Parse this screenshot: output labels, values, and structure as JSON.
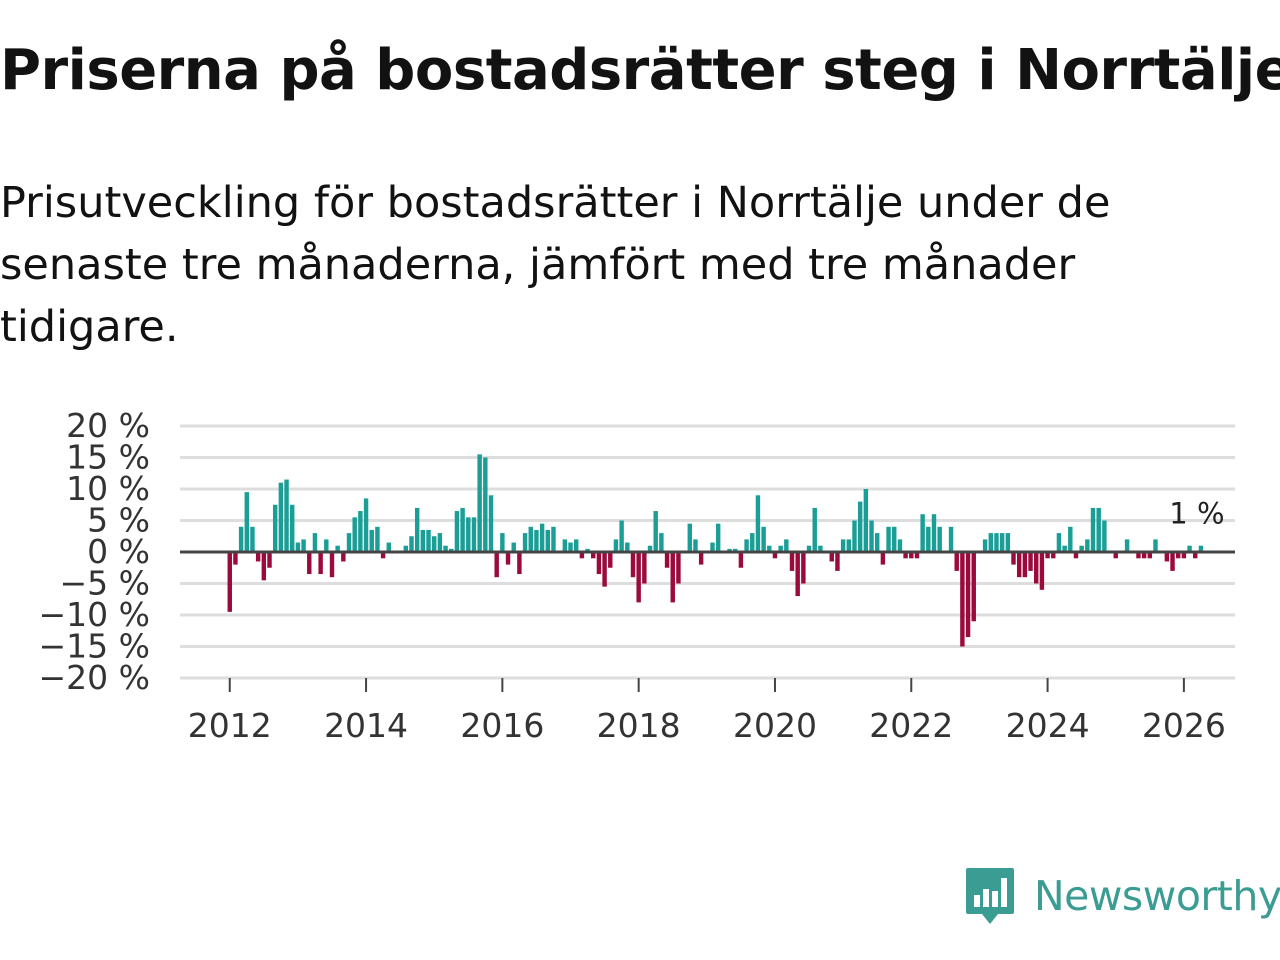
{
  "title": "Priserna på bostadsrätter steg i Norrtälje",
  "subtitle": "Prisutveckling för bostadsrätter i Norrtälje under de senaste tre månaderna, jämfört med tre månader tidigare.",
  "brand": {
    "name": "Newsworthy",
    "icon": "newsworthy-logo-icon"
  },
  "colors": {
    "positive": "#1a9e96",
    "negative": "#9b0a3d",
    "grid": "#dddddd",
    "zero_line": "#444444",
    "text": "#333333"
  },
  "chart_data": {
    "type": "bar",
    "title": "Priserna på bostadsrätter steg i Norrtälje",
    "xlabel": "",
    "ylabel": "",
    "ylim": [
      -20,
      20
    ],
    "xlim": [
      2011.27,
      2026.75
    ],
    "y_ticks": [
      20,
      15,
      10,
      5,
      0,
      -5,
      -10,
      -15,
      -20
    ],
    "y_tick_labels": [
      "20 %",
      "15 %",
      "10 %",
      "5 %",
      "0 %",
      "−5 %",
      "−10 %",
      "−15 %",
      "−20 %"
    ],
    "x_ticks": [
      2012,
      2014,
      2016,
      2018,
      2020,
      2022,
      2024,
      2026
    ],
    "x_tick_labels": [
      "2012",
      "2014",
      "2016",
      "2018",
      "2020",
      "2022",
      "2024",
      "2026"
    ],
    "grid": true,
    "last_value_label": "1 %",
    "series": [
      {
        "name": "Prisutveckling",
        "start": "2012-01",
        "frequency": "monthly",
        "values": [
          -9.5,
          -2,
          4,
          9.5,
          4,
          -1.5,
          -4.5,
          -2.5,
          7.5,
          11,
          11.5,
          7.5,
          1.5,
          2,
          -3.5,
          3,
          -3.5,
          2,
          -4,
          1,
          -1.5,
          3,
          5.5,
          6.5,
          8.5,
          3.5,
          4,
          -1,
          1.5,
          0,
          0,
          1,
          2.5,
          7,
          3.5,
          3.5,
          2.5,
          3,
          1,
          0.5,
          6.5,
          7,
          5.5,
          5.5,
          15.5,
          15,
          9,
          -4,
          3,
          -2,
          1.5,
          -3.5,
          3,
          4,
          3.5,
          4.5,
          3.5,
          4,
          0,
          2,
          1.5,
          2,
          -1,
          0.5,
          -1,
          -3.5,
          -5.5,
          -2.5,
          2,
          5,
          1.5,
          -4,
          -8,
          -5,
          1,
          6.5,
          3,
          -2.5,
          -8,
          -5,
          0,
          4.5,
          2,
          -2,
          0,
          1.5,
          4.5,
          0,
          0.5,
          0.5,
          -2.5,
          2,
          3,
          9,
          4,
          1,
          -1,
          1,
          2,
          -3,
          -7,
          -5,
          1,
          7,
          1,
          0,
          -1.5,
          -3,
          2,
          2,
          5,
          8,
          10,
          5,
          3,
          -2,
          4,
          4,
          2,
          -1,
          -1,
          -1,
          6,
          4,
          6,
          4,
          0,
          4,
          -3,
          -15,
          -13.5,
          -11,
          0,
          2,
          3,
          3,
          3,
          3,
          -2,
          -4,
          -4,
          -3,
          -5,
          -6,
          -1,
          -1,
          3,
          1,
          4,
          -1,
          1,
          2,
          7,
          7,
          5,
          0,
          -1,
          0,
          2,
          0,
          -1,
          -1,
          -1,
          2,
          0,
          -1.5,
          -3,
          -1,
          -1,
          1,
          -1,
          1
        ]
      }
    ]
  }
}
